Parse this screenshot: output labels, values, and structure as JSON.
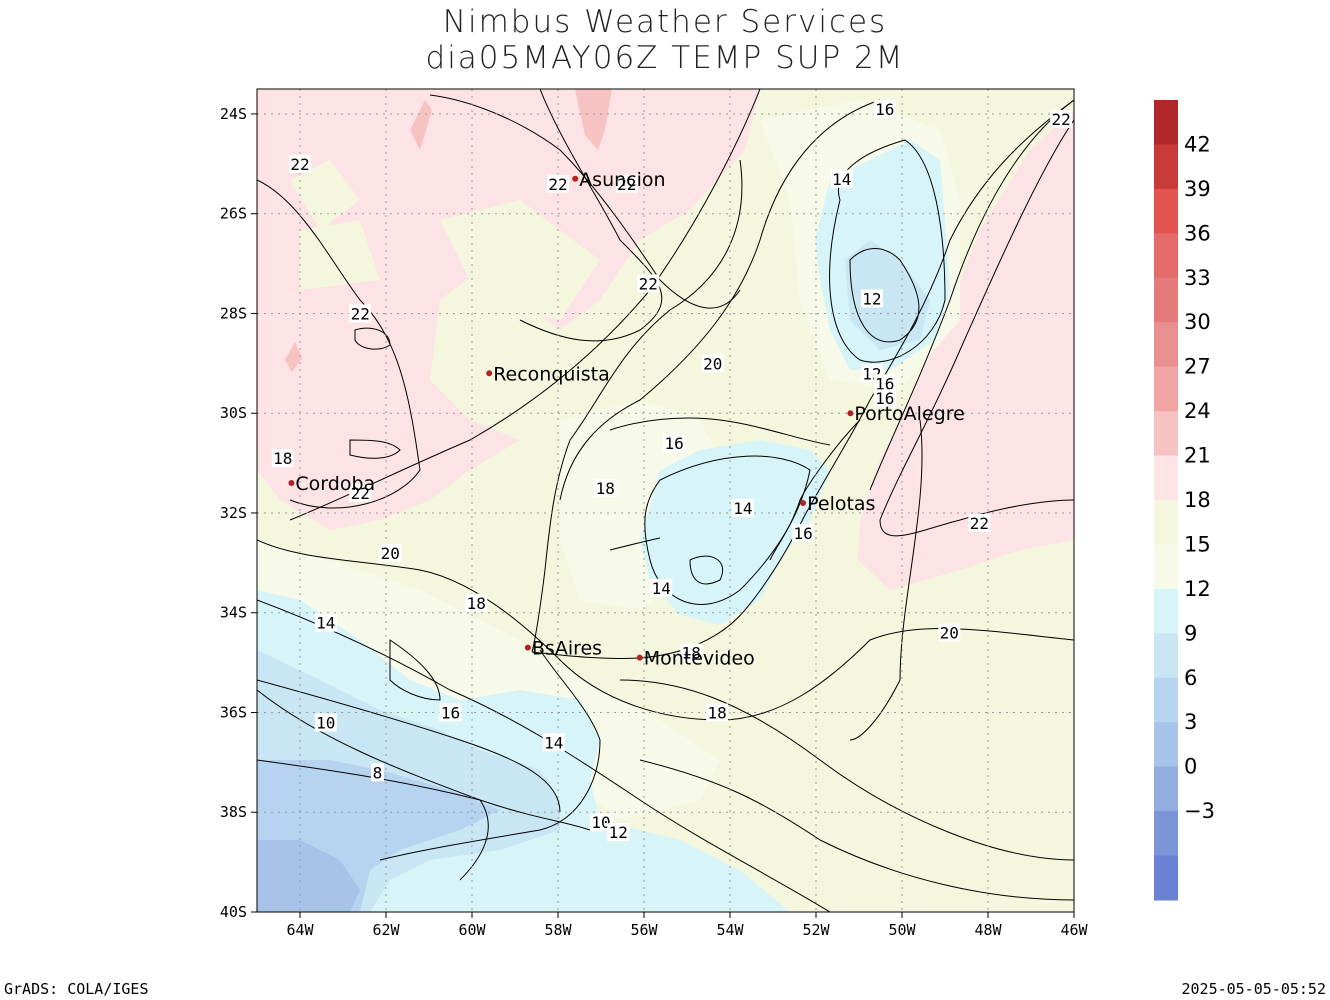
{
  "header": {
    "title": "Nimbus Weather Services",
    "subtitle": "dia05MAY06Z TEMP SUP 2M"
  },
  "footer": {
    "left": "GrADS: COLA/IGES",
    "right": "2025-05-05-05:52"
  },
  "map": {
    "lon_range": [
      -65,
      -46
    ],
    "lat_range": [
      -40,
      -23.5
    ],
    "lon_ticks": [
      "64W",
      "62W",
      "60W",
      "58W",
      "56W",
      "54W",
      "52W",
      "50W",
      "48W",
      "46W"
    ],
    "lat_ticks": [
      "24S",
      "26S",
      "28S",
      "30S",
      "32S",
      "34S",
      "36S",
      "38S",
      "40S"
    ],
    "grid": "dotted",
    "cities": [
      {
        "name": "Asuncion",
        "lon": -57.6,
        "lat": -25.3
      },
      {
        "name": "Reconquista",
        "lon": -59.6,
        "lat": -29.2
      },
      {
        "name": "Cordoba",
        "lon": -64.2,
        "lat": -31.4
      },
      {
        "name": "PortoAlegre",
        "lon": -51.2,
        "lat": -30.0
      },
      {
        "name": "Pelotas",
        "lon": -52.3,
        "lat": -31.8
      },
      {
        "name": "BsAires",
        "lon": -58.7,
        "lat": -34.7
      },
      {
        "name": "Montevideo",
        "lon": -56.1,
        "lat": -34.9
      }
    ],
    "contour_labels": [
      {
        "text": "22",
        "lon": -64.0,
        "lat": -25.0
      },
      {
        "text": "22",
        "lon": -58.0,
        "lat": -25.4
      },
      {
        "text": "22",
        "lon": -56.4,
        "lat": -25.4
      },
      {
        "text": "22",
        "lon": -55.9,
        "lat": -27.4
      },
      {
        "text": "22",
        "lon": -62.6,
        "lat": -28.0
      },
      {
        "text": "22",
        "lon": -62.6,
        "lat": -31.6
      },
      {
        "text": "22",
        "lon": -46.3,
        "lat": -24.1
      },
      {
        "text": "22",
        "lon": -48.2,
        "lat": -32.2
      },
      {
        "text": "16",
        "lon": -50.4,
        "lat": -23.9
      },
      {
        "text": "14",
        "lon": -51.4,
        "lat": -25.3
      },
      {
        "text": "12",
        "lon": -50.7,
        "lat": -27.7
      },
      {
        "text": "12",
        "lon": -50.7,
        "lat": -29.2
      },
      {
        "text": "16",
        "lon": -50.4,
        "lat": -29.4
      },
      {
        "text": "16",
        "lon": -50.4,
        "lat": -29.7
      },
      {
        "text": "20",
        "lon": -54.4,
        "lat": -29.0
      },
      {
        "text": "16",
        "lon": -55.3,
        "lat": -30.6
      },
      {
        "text": "18",
        "lon": -64.4,
        "lat": -30.9
      },
      {
        "text": "18",
        "lon": -56.9,
        "lat": -31.5
      },
      {
        "text": "14",
        "lon": -53.7,
        "lat": -31.9
      },
      {
        "text": "16",
        "lon": -52.3,
        "lat": -32.4
      },
      {
        "text": "20",
        "lon": -61.9,
        "lat": -32.8
      },
      {
        "text": "14",
        "lon": -55.6,
        "lat": -33.5
      },
      {
        "text": "18",
        "lon": -59.9,
        "lat": -33.8
      },
      {
        "text": "20",
        "lon": -48.9,
        "lat": -34.4
      },
      {
        "text": "14",
        "lon": -63.4,
        "lat": -34.2
      },
      {
        "text": "18",
        "lon": -54.9,
        "lat": -34.8
      },
      {
        "text": "16",
        "lon": -60.5,
        "lat": -36.0
      },
      {
        "text": "18",
        "lon": -54.3,
        "lat": -36.0
      },
      {
        "text": "10",
        "lon": -63.4,
        "lat": -36.2
      },
      {
        "text": "14",
        "lon": -58.1,
        "lat": -36.6
      },
      {
        "text": "8",
        "lon": -62.2,
        "lat": -37.2
      },
      {
        "text": "10",
        "lon": -57.0,
        "lat": -38.2
      },
      {
        "text": "12",
        "lon": -56.6,
        "lat": -38.4
      }
    ]
  },
  "colorbar": {
    "labels": [
      "42",
      "39",
      "36",
      "33",
      "30",
      "27",
      "24",
      "21",
      "18",
      "15",
      "12",
      "9",
      "6",
      "3",
      "0",
      "−3"
    ],
    "colors": [
      "#b2282a",
      "#c83a38",
      "#e55350",
      "#e56b6b",
      "#e47a7a",
      "#e89090",
      "#f0a4a4",
      "#f7c2c2",
      "#fde3e5",
      "#f4f6dd",
      "#f7fae9",
      "#d7f4f8",
      "#c9e6f4",
      "#b6d3ef",
      "#a7c3ea",
      "#93acdf",
      "#7c94d8",
      "#6b81d3"
    ]
  }
}
